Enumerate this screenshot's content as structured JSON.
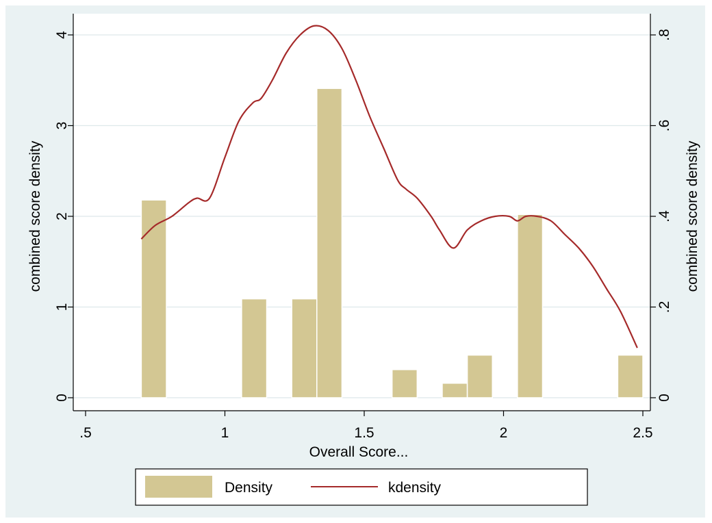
{
  "chart_data": {
    "type": "bar",
    "xlabel": "Overall Score...",
    "ylabel_left": "combined score density",
    "ylabel_right": "combined score density",
    "xlim": [
      0.45,
      2.55
    ],
    "ylim_left": [
      0,
      4.17
    ],
    "ylim_right": [
      0,
      0.834
    ],
    "x_ticks": [
      0.5,
      1,
      1.5,
      2,
      2.5
    ],
    "x_tick_labels": [
      ".5",
      "1",
      "1.5",
      "2",
      "2.5"
    ],
    "y_left_ticks": [
      0,
      1,
      2,
      3,
      4
    ],
    "y_left_tick_labels": [
      "0",
      "1",
      "2",
      "3",
      "4"
    ],
    "y_right_ticks": [
      0,
      0.2,
      0.4,
      0.6,
      0.8
    ],
    "y_right_tick_labels": [
      "0",
      ".2",
      ".4",
      ".6",
      ".8"
    ],
    "grid": true,
    "legend": {
      "position": "bottom",
      "entries": [
        "Density",
        "kdensity"
      ]
    },
    "colors": {
      "background": "#eaf2f3",
      "plot_background": "#ffffff",
      "gridline": "#dde8ea",
      "bar_fill": "#d3c793",
      "bar_edge": "#ffffff",
      "line": "#a52a2a"
    },
    "series": [
      {
        "name": "Density",
        "type": "histogram",
        "axis": "left",
        "bars": [
          {
            "x0": 0.7,
            "x1": 0.79,
            "value": 2.18
          },
          {
            "x0": 1.06,
            "x1": 1.15,
            "value": 1.09
          },
          {
            "x0": 1.24,
            "x1": 1.33,
            "value": 1.09
          },
          {
            "x0": 1.33,
            "x1": 1.42,
            "value": 3.41
          },
          {
            "x0": 1.6,
            "x1": 1.69,
            "value": 0.31
          },
          {
            "x0": 1.78,
            "x1": 1.87,
            "value": 0.16
          },
          {
            "x0": 1.87,
            "x1": 1.96,
            "value": 0.47
          },
          {
            "x0": 2.05,
            "x1": 2.14,
            "value": 2.02
          },
          {
            "x0": 2.41,
            "x1": 2.5,
            "value": 0.47
          }
        ]
      },
      {
        "name": "kdensity",
        "type": "line",
        "axis": "right",
        "points": [
          [
            0.7,
            0.35
          ],
          [
            0.75,
            0.38
          ],
          [
            0.81,
            0.4
          ],
          [
            0.87,
            0.43
          ],
          [
            0.9,
            0.44
          ],
          [
            0.945,
            0.44
          ],
          [
            1.0,
            0.53
          ],
          [
            1.05,
            0.61
          ],
          [
            1.1,
            0.65
          ],
          [
            1.13,
            0.66
          ],
          [
            1.17,
            0.7
          ],
          [
            1.22,
            0.76
          ],
          [
            1.27,
            0.8
          ],
          [
            1.32,
            0.82
          ],
          [
            1.37,
            0.81
          ],
          [
            1.42,
            0.77
          ],
          [
            1.47,
            0.7
          ],
          [
            1.52,
            0.62
          ],
          [
            1.57,
            0.55
          ],
          [
            1.62,
            0.48
          ],
          [
            1.65,
            0.46
          ],
          [
            1.69,
            0.44
          ],
          [
            1.74,
            0.4
          ],
          [
            1.77,
            0.37
          ],
          [
            1.82,
            0.33
          ],
          [
            1.87,
            0.37
          ],
          [
            1.92,
            0.39
          ],
          [
            1.97,
            0.4
          ],
          [
            2.02,
            0.4
          ],
          [
            2.05,
            0.39
          ],
          [
            2.08,
            0.4
          ],
          [
            2.12,
            0.4
          ],
          [
            2.17,
            0.39
          ],
          [
            2.22,
            0.36
          ],
          [
            2.27,
            0.33
          ],
          [
            2.32,
            0.29
          ],
          [
            2.37,
            0.24
          ],
          [
            2.42,
            0.19
          ],
          [
            2.48,
            0.11
          ]
        ]
      }
    ]
  }
}
